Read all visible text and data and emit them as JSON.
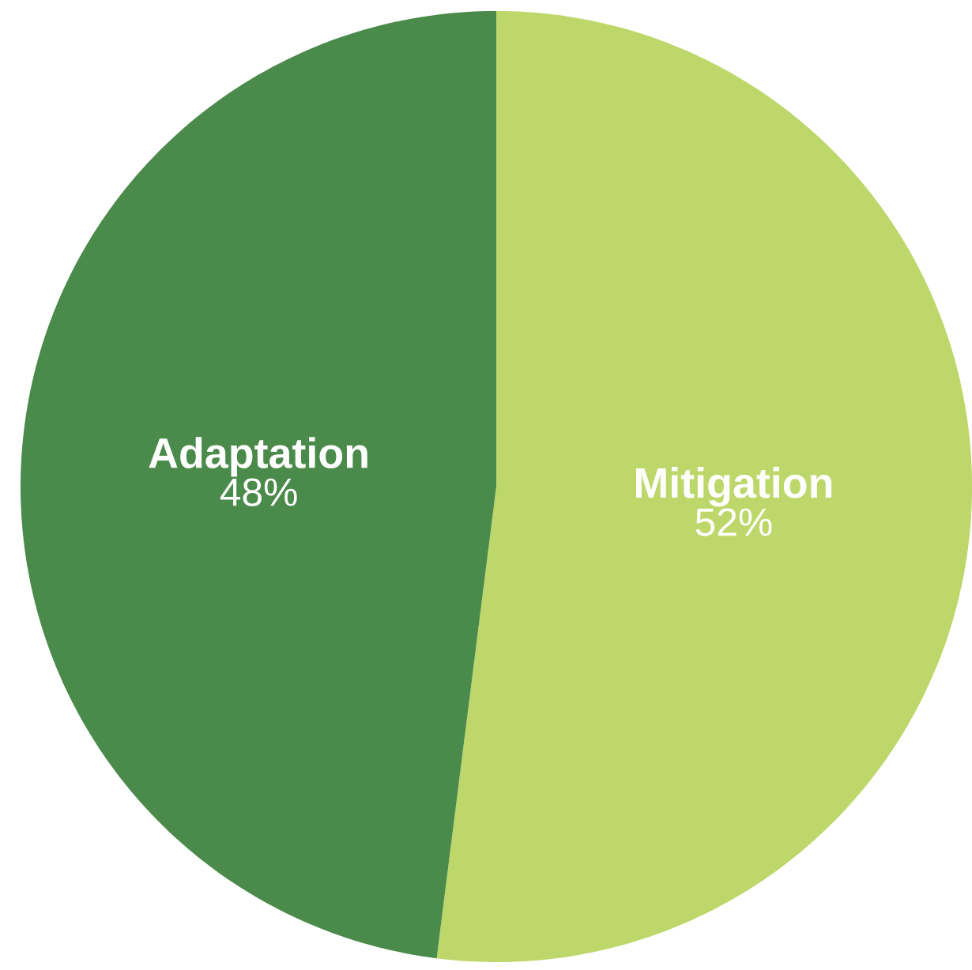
{
  "chart_data": {
    "type": "pie",
    "categories": [
      "Mitigation",
      "Adaptation"
    ],
    "values": [
      52,
      48
    ],
    "colors": [
      "#bed76a",
      "#4a8a4a"
    ],
    "value_labels": [
      "52%",
      "48%"
    ]
  }
}
